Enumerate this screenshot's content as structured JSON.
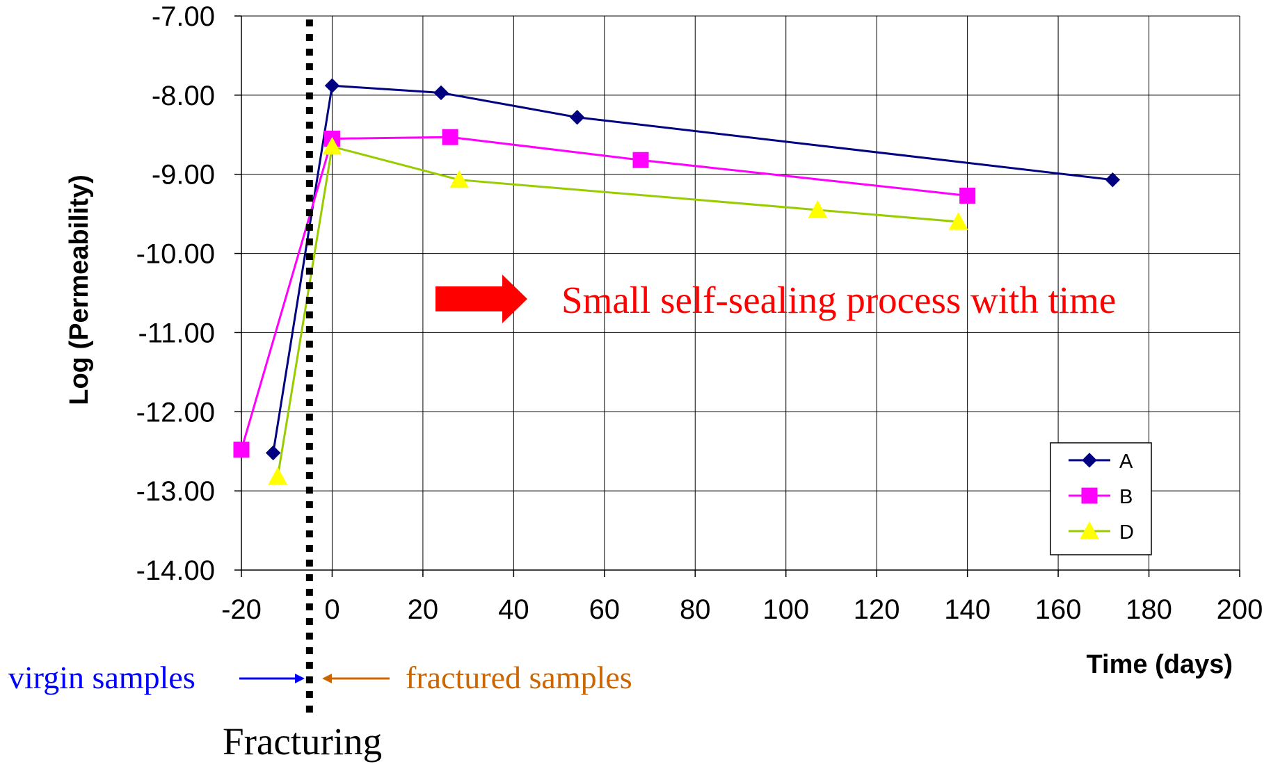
{
  "chart_data": {
    "type": "line",
    "xlabel": "Time (days)",
    "ylabel": "Log (Permeability)",
    "xlim": [
      -20,
      200
    ],
    "ylim": [
      -14.0,
      -7.0
    ],
    "x_ticks": [
      "-20",
      "0",
      "20",
      "40",
      "60",
      "80",
      "100",
      "120",
      "140",
      "160",
      "180",
      "200"
    ],
    "y_ticks": [
      "-7.00",
      "-8.00",
      "-9.00",
      "-10.00",
      "-11.00",
      "-12.00",
      "-13.00",
      "-14.00"
    ],
    "grid": true,
    "legend_position": "bottom-right",
    "series": [
      {
        "name": "A",
        "color": "#000080",
        "marker": "diamond",
        "points": [
          [
            -13,
            -12.52
          ],
          [
            0,
            -7.88
          ],
          [
            24,
            -7.97
          ],
          [
            54,
            -8.28
          ],
          [
            172,
            -9.07
          ]
        ]
      },
      {
        "name": "B",
        "color": "#FF00FF",
        "marker": "square",
        "points": [
          [
            -20,
            -12.48
          ],
          [
            0,
            -8.55
          ],
          [
            26,
            -8.53
          ],
          [
            68,
            -8.82
          ],
          [
            140,
            -9.27
          ]
        ]
      },
      {
        "name": "D",
        "color": "#99CC00",
        "marker": "triangle",
        "marker_fill": "#FFFF00",
        "points": [
          [
            -12,
            -12.82
          ],
          [
            0,
            -8.65
          ],
          [
            28,
            -9.07
          ],
          [
            107,
            -9.45
          ],
          [
            138,
            -9.6
          ]
        ]
      }
    ],
    "fracturing_line_x": -5,
    "annotations": {
      "self_sealing": "Small self-sealing process with time",
      "virgin": "virgin samples",
      "fractured": "fractured samples",
      "fracturing": "Fracturing"
    },
    "colors": {
      "self_sealing": "#FF0000",
      "virgin": "#0000FF",
      "fractured": "#CC6600",
      "fracturing_line": "#000000",
      "grid": "#000000"
    }
  }
}
